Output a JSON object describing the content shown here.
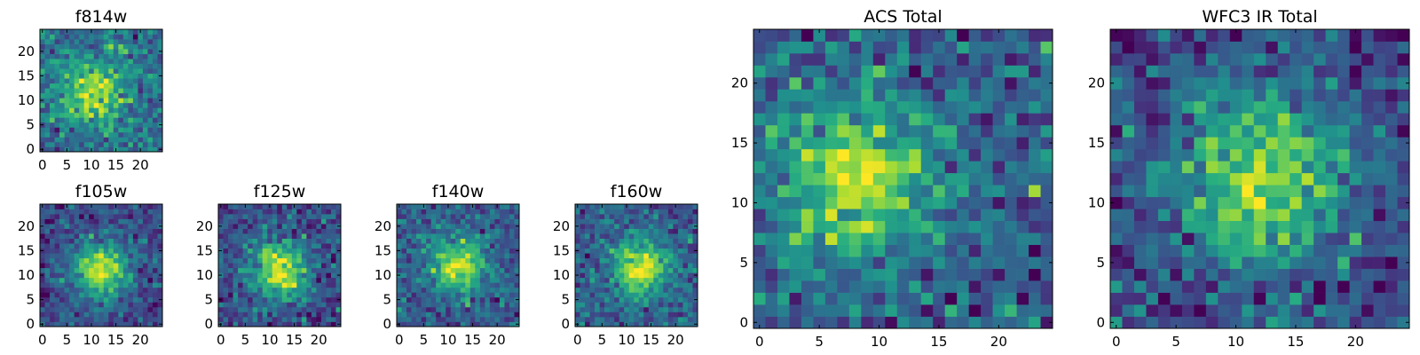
{
  "chart_data": [
    {
      "type": "heatmap",
      "title": "f814w",
      "grid_size": 25,
      "xlim": [
        -0.5,
        24.5
      ],
      "ylim": [
        -0.5,
        24.5
      ],
      "xticks": [
        0,
        5,
        10,
        15,
        20
      ],
      "yticks": [
        0,
        5,
        10,
        15,
        20
      ],
      "xtick_labels": [
        "0",
        "5",
        "10",
        "15",
        "20"
      ],
      "ytick_labels": [
        "0",
        "5",
        "10",
        "15",
        "20"
      ],
      "colormap": "viridis",
      "source_center": [
        10,
        12
      ],
      "source_width": 4.5,
      "noise_level": 0.55,
      "seed": 11
    },
    {
      "type": "heatmap",
      "title": "f105w",
      "grid_size": 25,
      "xlim": [
        -0.5,
        24.5
      ],
      "ylim": [
        -0.5,
        24.5
      ],
      "xticks": [
        0,
        5,
        10,
        15,
        20
      ],
      "yticks": [
        0,
        5,
        10,
        15,
        20
      ],
      "xtick_labels": [
        "0",
        "5",
        "10",
        "15",
        "20"
      ],
      "ytick_labels": [
        "0",
        "5",
        "10",
        "15",
        "20"
      ],
      "colormap": "viridis",
      "source_center": [
        12,
        11
      ],
      "source_width": 4.0,
      "noise_level": 0.35,
      "seed": 23
    },
    {
      "type": "heatmap",
      "title": "f125w",
      "grid_size": 25,
      "xlim": [
        -0.5,
        24.5
      ],
      "ylim": [
        -0.5,
        24.5
      ],
      "xticks": [
        0,
        5,
        10,
        15,
        20
      ],
      "yticks": [
        0,
        5,
        10,
        15,
        20
      ],
      "xtick_labels": [
        "0",
        "5",
        "10",
        "15",
        "20"
      ],
      "ytick_labels": [
        "0",
        "5",
        "10",
        "15",
        "20"
      ],
      "colormap": "viridis",
      "source_center": [
        12,
        11
      ],
      "source_width": 4.2,
      "noise_level": 0.4,
      "seed": 37
    },
    {
      "type": "heatmap",
      "title": "f140w",
      "grid_size": 25,
      "xlim": [
        -0.5,
        24.5
      ],
      "ylim": [
        -0.5,
        24.5
      ],
      "xticks": [
        0,
        5,
        10,
        15,
        20
      ],
      "yticks": [
        0,
        5,
        10,
        15,
        20
      ],
      "xtick_labels": [
        "0",
        "5",
        "10",
        "15",
        "20"
      ],
      "ytick_labels": [
        "0",
        "5",
        "10",
        "15",
        "20"
      ],
      "colormap": "viridis",
      "source_center": [
        12,
        12
      ],
      "source_width": 4.0,
      "noise_level": 0.4,
      "seed": 41
    },
    {
      "type": "heatmap",
      "title": "f160w",
      "grid_size": 25,
      "xlim": [
        -0.5,
        24.5
      ],
      "ylim": [
        -0.5,
        24.5
      ],
      "xticks": [
        0,
        5,
        10,
        15,
        20
      ],
      "yticks": [
        0,
        5,
        10,
        15,
        20
      ],
      "xtick_labels": [
        "0",
        "5",
        "10",
        "15",
        "20"
      ],
      "ytick_labels": [
        "0",
        "5",
        "10",
        "15",
        "20"
      ],
      "colormap": "viridis",
      "source_center": [
        13,
        11
      ],
      "source_width": 3.8,
      "noise_level": 0.35,
      "seed": 53
    },
    {
      "type": "heatmap",
      "title": "ACS Total",
      "grid_size": 25,
      "xlim": [
        -0.5,
        24.5
      ],
      "ylim": [
        -0.5,
        24.5
      ],
      "xticks": [
        0,
        5,
        10,
        15,
        20
      ],
      "yticks": [
        0,
        5,
        10,
        15,
        20
      ],
      "xtick_labels": [
        "0",
        "5",
        "10",
        "15",
        "20"
      ],
      "ytick_labels": [
        "0",
        "5",
        "10",
        "15",
        "20"
      ],
      "colormap": "viridis",
      "source_center": [
        8,
        12
      ],
      "source_width": 4.5,
      "noise_level": 0.5,
      "seed": 67
    },
    {
      "type": "heatmap",
      "title": "WFC3 IR Total",
      "grid_size": 25,
      "xlim": [
        -0.5,
        24.5
      ],
      "ylim": [
        -0.5,
        24.5
      ],
      "xticks": [
        0,
        5,
        10,
        15,
        20
      ],
      "yticks": [
        0,
        5,
        10,
        15,
        20
      ],
      "xtick_labels": [
        "0",
        "5",
        "10",
        "15",
        "20"
      ],
      "ytick_labels": [
        "0",
        "5",
        "10",
        "15",
        "20"
      ],
      "colormap": "viridis",
      "source_center": [
        12,
        12
      ],
      "source_width": 5.0,
      "noise_level": 0.45,
      "seed": 79
    }
  ]
}
